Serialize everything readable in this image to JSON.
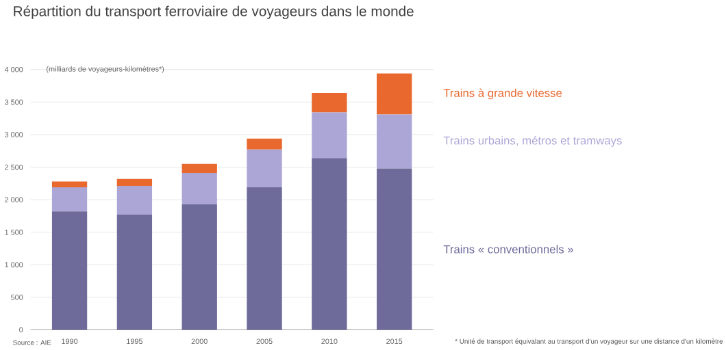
{
  "chart_data": {
    "type": "bar",
    "stacked": true,
    "title": "Répartition du transport ferroviaire de voyageurs dans le monde",
    "ylabel": "(milliards de voyageurs-kilomètres*)",
    "categories": [
      "1990",
      "1995",
      "2000",
      "2005",
      "2010",
      "2015"
    ],
    "series": [
      {
        "name": "Trains « conventionnels »",
        "color": "#6e6a9a",
        "values": [
          1820,
          1770,
          1930,
          2190,
          2640,
          2480
        ]
      },
      {
        "name": "Trains urbains, métros et tramways",
        "color": "#aca6d6",
        "values": [
          370,
          440,
          480,
          580,
          700,
          830
        ]
      },
      {
        "name": "Trains à grande vitesse",
        "color": "#e8682e",
        "values": [
          90,
          110,
          140,
          170,
          300,
          630
        ]
      }
    ],
    "ylim": [
      0,
      4000
    ],
    "yticks": [
      0,
      500,
      {
        "value": 1000,
        "label": "1 000"
      },
      {
        "value": 1500,
        "label": "1 500"
      },
      {
        "value": 2000,
        "label": "2 000"
      },
      {
        "value": 2500,
        "label": "2 500"
      },
      {
        "value": 3000,
        "label": "3 000"
      },
      {
        "value": 3500,
        "label": "3 500"
      },
      {
        "value": 4000,
        "label": "4 000"
      }
    ],
    "grid": "y",
    "annotations": [
      "Source : AIE",
      "* Unité de transport équivalant au transport d'un voyageur sur une distance d'un kilomètre"
    ]
  }
}
